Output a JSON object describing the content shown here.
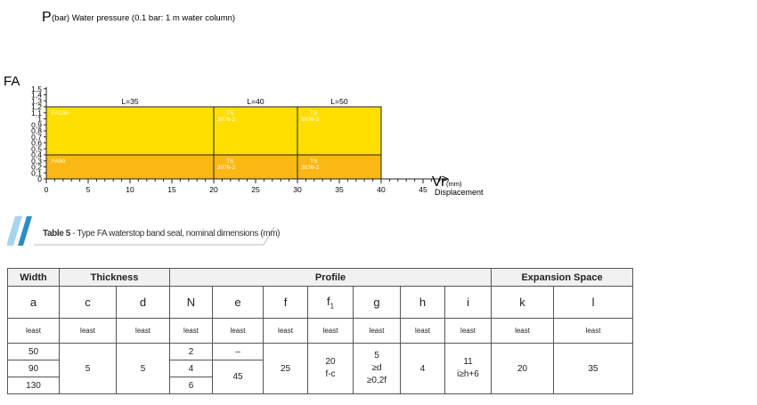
{
  "chart": {
    "y_axis_letter": "P",
    "y_axis_text": "(bar) Water pressure (0.1 bar: 1 m water column)",
    "left_label": "FA",
    "x_axis_letter": "Vr",
    "x_axis_unit": "(mm)",
    "x_axis_text": "Displacement",
    "colors": {
      "upper": "#ffde00",
      "lower": "#fbb813",
      "border": "#222222"
    }
  },
  "chart_data": {
    "type": "area",
    "x_ticks": [
      0,
      5,
      10,
      15,
      20,
      25,
      30,
      35,
      40,
      45
    ],
    "x_tick_labels": [
      "0",
      "5",
      "10",
      "15",
      "20",
      "25",
      "30",
      "35",
      "40",
      "45"
    ],
    "y_ticks": [
      0,
      0.1,
      0.2,
      0.3,
      0.4,
      0.5,
      0.6,
      0.7,
      0.8,
      0.9,
      1,
      1.1,
      1.2,
      1.3,
      1.4,
      1.5
    ],
    "y_tick_labels": [
      "0",
      "0,1",
      "0,2",
      "0,3",
      "0,4",
      "0,5",
      "0,6",
      "0,7",
      "0,8",
      "0,9",
      "1",
      "1,1",
      "1,2",
      "1,3",
      "1,4",
      "1,5"
    ],
    "xlim": [
      0,
      48
    ],
    "ylim": [
      0,
      1.5
    ],
    "regions": [
      {
        "x0": 0,
        "x1": 20,
        "y0": 0.4,
        "y1": 1.2,
        "label": "FA130",
        "level": "upper"
      },
      {
        "x0": 20,
        "x1": 30,
        "y0": 0.4,
        "y1": 1.2,
        "label": "TS\n3076-2",
        "level": "upper"
      },
      {
        "x0": 30,
        "x1": 40,
        "y0": 0.4,
        "y1": 1.2,
        "label": "TS\n3076-2",
        "level": "upper"
      },
      {
        "x0": 0,
        "x1": 20,
        "y0": 0,
        "y1": 0.4,
        "label": "FA90",
        "level": "lower"
      },
      {
        "x0": 20,
        "x1": 30,
        "y0": 0,
        "y1": 0.4,
        "label": "TS\n3076-2",
        "level": "lower"
      },
      {
        "x0": 30,
        "x1": 40,
        "y0": 0,
        "y1": 0.4,
        "label": "TS\n3076-2",
        "level": "lower"
      }
    ],
    "length_labels": [
      {
        "x": 10,
        "label": "L=35"
      },
      {
        "x": 25,
        "label": "L=40"
      },
      {
        "x": 35,
        "label": "L=50"
      }
    ]
  },
  "caption": {
    "number": "Table 5",
    "text": " - Type FA waterstop band seal, nominal dimensions (mm)",
    "colors": {
      "light": "#a8d4ec",
      "dark": "#2a8dc6",
      "line": "#bbbbbb"
    }
  },
  "table": {
    "groups": [
      "Width",
      "Thickness",
      "Profile",
      "Expansion Space"
    ],
    "symbols": [
      "a",
      "c",
      "d",
      "N",
      "e",
      "f",
      "f",
      "g",
      "h",
      "i",
      "k",
      "l"
    ],
    "symbol_sub": "1",
    "least": "least",
    "rows": {
      "a": [
        "50",
        "90",
        "130"
      ],
      "c": "5",
      "d": "5",
      "N": [
        "2",
        "4",
        "6"
      ],
      "e": [
        "–",
        "45"
      ],
      "f": "25",
      "f1": [
        "20",
        "f-c"
      ],
      "g": [
        "5",
        "≥d",
        "≥0,2f"
      ],
      "h": "4",
      "i": [
        "11",
        "i≥h+6"
      ],
      "k": "20",
      "l": "35"
    }
  }
}
